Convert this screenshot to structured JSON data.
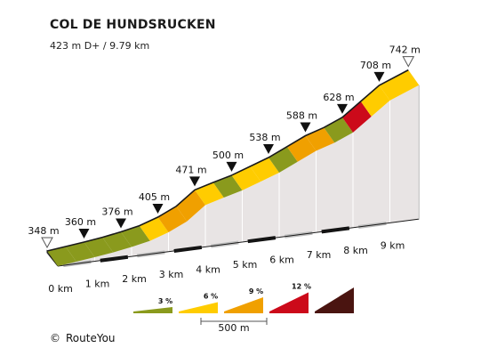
{
  "header": {
    "title": "COL DE HUNDSRUCKEN",
    "subtitle": "423 m D+ / 9.79 km"
  },
  "footer": {
    "credit_icon": "©",
    "credit": "RouteYou"
  },
  "colors": {
    "green": "#8a9a1d",
    "yellow": "#ffcc00",
    "orange": "#f0a000",
    "red": "#cc0a1a",
    "darkred": "#4a1410",
    "side": "#e8e4e4",
    "grey_band": "#c8c8c8",
    "outline": "#1a1a1a"
  },
  "chart_data": {
    "type": "area",
    "title": "COL DE HUNDSRUCKEN",
    "subtitle": "423 m D+ / 9.79 km",
    "distance_unit": "km",
    "elevation_unit": "m",
    "x": [
      0,
      0.5,
      1,
      1.5,
      2,
      2.5,
      3,
      3.5,
      4,
      4.5,
      5,
      5.5,
      6,
      6.5,
      7,
      7.5,
      8,
      8.5,
      9,
      9.79
    ],
    "y": [
      348,
      354,
      360,
      367,
      376,
      387,
      405,
      430,
      471,
      486,
      500,
      519,
      538,
      563,
      588,
      605,
      628,
      668,
      708,
      742
    ],
    "segment_gradient_class": [
      "green",
      "green",
      "green",
      "green",
      "green",
      "yellow",
      "orange",
      "orange",
      "yellow",
      "green",
      "yellow",
      "yellow",
      "green",
      "orange",
      "orange",
      "green",
      "red",
      "yellow",
      "yellow"
    ],
    "xticks": [
      {
        "x": 0,
        "label": "0 km"
      },
      {
        "x": 1,
        "label": "1 km"
      },
      {
        "x": 2,
        "label": "2 km"
      },
      {
        "x": 3,
        "label": "3 km"
      },
      {
        "x": 4,
        "label": "4 km"
      },
      {
        "x": 5,
        "label": "5 km"
      },
      {
        "x": 6,
        "label": "6 km"
      },
      {
        "x": 7,
        "label": "7 km"
      },
      {
        "x": 8,
        "label": "8 km"
      },
      {
        "x": 9,
        "label": "9 km"
      }
    ],
    "elevation_labels": [
      {
        "x": 0,
        "y": 348,
        "label": "348 m",
        "marker": "open"
      },
      {
        "x": 1,
        "y": 360,
        "label": "360 m",
        "marker": "filled"
      },
      {
        "x": 2,
        "y": 376,
        "label": "376 m",
        "marker": "filled"
      },
      {
        "x": 3,
        "y": 405,
        "label": "405 m",
        "marker": "filled"
      },
      {
        "x": 4,
        "y": 471,
        "label": "471 m",
        "marker": "filled"
      },
      {
        "x": 5,
        "y": 500,
        "label": "500 m",
        "marker": "filled"
      },
      {
        "x": 6,
        "y": 538,
        "label": "538 m",
        "marker": "filled"
      },
      {
        "x": 7,
        "y": 588,
        "label": "588 m",
        "marker": "filled"
      },
      {
        "x": 8,
        "y": 628,
        "label": "628 m",
        "marker": "filled"
      },
      {
        "x": 9,
        "y": 708,
        "label": "708 m",
        "marker": "filled"
      },
      {
        "x": 9.79,
        "y": 742,
        "label": "742 m",
        "marker": "open"
      }
    ],
    "legend": {
      "items": [
        {
          "label": "3 %",
          "color": "green"
        },
        {
          "label": "6 %",
          "color": "yellow"
        },
        {
          "label": "9 %",
          "color": "orange"
        },
        {
          "label": "12 %",
          "color": "red"
        },
        {
          "label": "",
          "color": "darkred"
        }
      ],
      "scale_label": "500 m",
      "scale_m": 500
    }
  }
}
